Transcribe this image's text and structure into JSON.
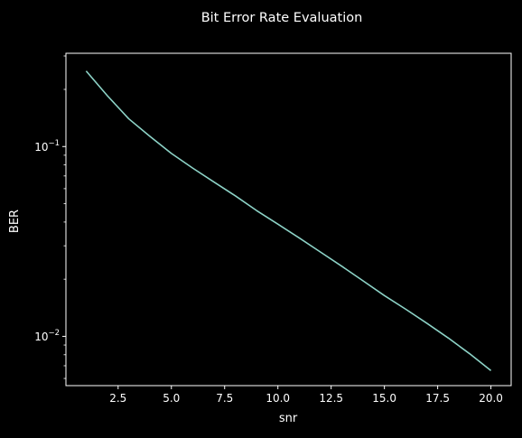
{
  "chart_data": {
    "type": "line",
    "title": "Bit Error Rate Evaluation",
    "xlabel": "snr",
    "ylabel": "BER",
    "xscale": "linear",
    "yscale": "log",
    "xlim": [
      0.05,
      20.95
    ],
    "ylim": [
      0.0055,
      0.31
    ],
    "grid": false,
    "x_ticks": [
      2.5,
      5.0,
      7.5,
      10.0,
      12.5,
      15.0,
      17.5,
      20.0
    ],
    "x_tick_labels": [
      "2.5",
      "5.0",
      "7.5",
      "10.0",
      "12.5",
      "15.0",
      "17.5",
      "20.0"
    ],
    "y_major_ticks": [
      0.01,
      0.1
    ],
    "y_minor_ticks": [
      0.006,
      0.007,
      0.008,
      0.009,
      0.02,
      0.03,
      0.04,
      0.05,
      0.06,
      0.07,
      0.08,
      0.09,
      0.2,
      0.3
    ],
    "series": [
      {
        "color": "#8dd3c7",
        "x": [
          1.0,
          2.0,
          3.0,
          4.0,
          5.0,
          6.0,
          7.0,
          8.0,
          9.0,
          10.0,
          11.0,
          12.0,
          13.0,
          14.0,
          15.0,
          16.0,
          17.0,
          18.0,
          19.0,
          20.0
        ],
        "y": [
          0.25,
          0.185,
          0.14,
          0.113,
          0.092,
          0.077,
          0.065,
          0.055,
          0.046,
          0.039,
          0.033,
          0.0278,
          0.0234,
          0.0196,
          0.0164,
          0.0139,
          0.0117,
          0.0098,
          0.0081,
          0.0066
        ]
      }
    ]
  },
  "colors": {
    "background": "#000000",
    "axes": "#ffffff",
    "text": "#ffffff",
    "line": "#8dd3c7"
  }
}
